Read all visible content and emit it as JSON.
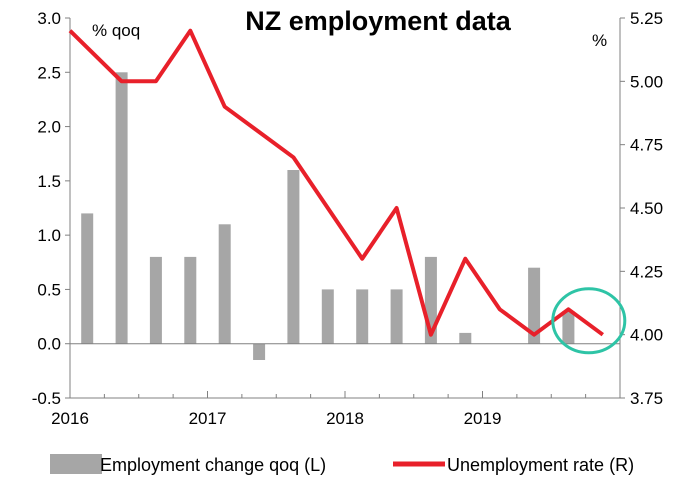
{
  "chart_data": {
    "type": "bar",
    "title": "NZ employment data",
    "left_unit": "% qoq",
    "right_unit": "%",
    "x_tick_labels": [
      "2016",
      "2017",
      "2018",
      "2019"
    ],
    "left_ylim": [
      -0.5,
      3.0
    ],
    "left_yticks": [
      "-0.5",
      "0.0",
      "0.5",
      "1.0",
      "1.5",
      "2.0",
      "2.5",
      "3.0"
    ],
    "right_ylim": [
      3.75,
      5.25
    ],
    "right_yticks": [
      "3.75",
      "4.00",
      "4.25",
      "4.50",
      "4.75",
      "5.00",
      "5.25"
    ],
    "quarters": [
      "2016Q1",
      "2016Q2",
      "2016Q3",
      "2016Q4",
      "2017Q1",
      "2017Q2",
      "2017Q3",
      "2017Q4",
      "2018Q1",
      "2018Q2",
      "2018Q3",
      "2018Q4",
      "2019Q1",
      "2019Q2",
      "2019Q3",
      "2019Q4"
    ],
    "series": [
      {
        "name": "Employment change qoq (L)",
        "type": "bar",
        "axis": "left",
        "color": "#a6a6a6",
        "values": [
          1.2,
          2.5,
          0.8,
          0.8,
          1.1,
          -0.15,
          1.6,
          0.5,
          0.5,
          0.5,
          0.8,
          0.1,
          null,
          0.7,
          0.3,
          null
        ]
      },
      {
        "name": "Unemployment rate (R)",
        "type": "line",
        "axis": "right",
        "color": "#e8202a",
        "values": [
          5.2,
          5.0,
          5.0,
          5.2,
          4.9,
          4.8,
          4.7,
          4.5,
          4.3,
          4.5,
          4.0,
          4.3,
          4.1,
          4.0,
          4.1,
          4.0
        ]
      }
    ],
    "annotation": {
      "type": "circle",
      "color": "#2ec4a6",
      "quarter": "2019Q4"
    },
    "grid": false,
    "legend_position": "bottom"
  }
}
